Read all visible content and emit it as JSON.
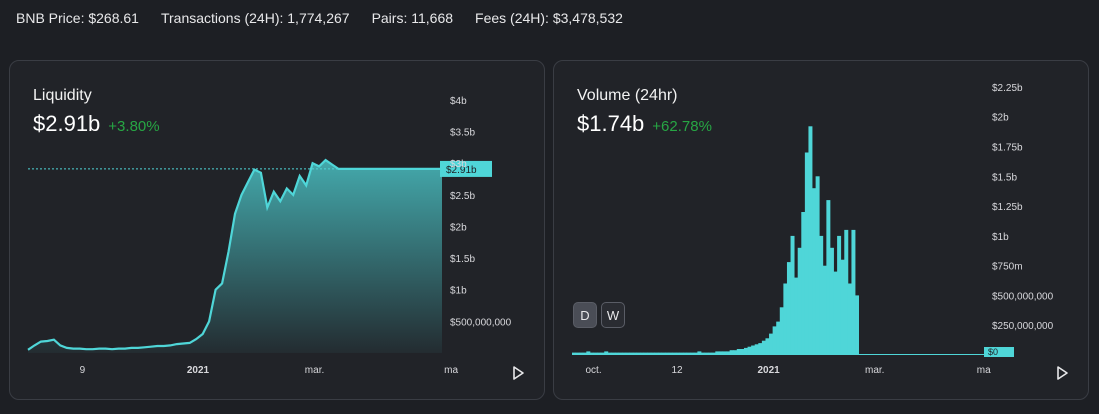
{
  "stats": {
    "bnb_price": "BNB Price: $268.61",
    "transactions": "Transactions (24H): 1,774,267",
    "pairs": "Pairs: 11,668",
    "fees": "Fees (24H): $3,478,532"
  },
  "colors": {
    "accent": "#4fd6d8",
    "positive": "#27a644",
    "background": "#1d1f24",
    "card": "#212328"
  },
  "liquidity": {
    "title": "Liquidity",
    "value": "$2.91b",
    "change": "+3.80%",
    "current_label": "$2.91b",
    "play_icon": "play-icon",
    "chart_data": {
      "type": "area",
      "y_ticks": [
        "$4b",
        "$3.5b",
        "$3b",
        "$2.5b",
        "$2b",
        "$1.5b",
        "$1b",
        "$500,000,000"
      ],
      "y_tick_values": [
        4,
        3.5,
        3,
        2.5,
        2,
        1.5,
        1,
        0.5
      ],
      "x_ticks": [
        "9",
        "2021",
        "mar.",
        "ma"
      ],
      "x_tick_positions": [
        0.13,
        0.33,
        0.55,
        0.81
      ],
      "ylim": [
        0,
        4.3
      ],
      "values": [
        0.05,
        0.12,
        0.18,
        0.19,
        0.21,
        0.12,
        0.08,
        0.07,
        0.07,
        0.06,
        0.06,
        0.07,
        0.07,
        0.06,
        0.07,
        0.07,
        0.08,
        0.08,
        0.09,
        0.1,
        0.11,
        0.11,
        0.12,
        0.14,
        0.15,
        0.16,
        0.22,
        0.3,
        0.5,
        1.0,
        1.1,
        1.6,
        2.2,
        2.5,
        2.7,
        2.9,
        2.85,
        2.3,
        2.55,
        2.4,
        2.6,
        2.5,
        2.8,
        2.65,
        3.0,
        2.95,
        3.05,
        2.98,
        2.91,
        2.91,
        2.91,
        2.91,
        2.91,
        2.91,
        2.91,
        2.91,
        2.91,
        2.91,
        2.91,
        2.91,
        2.91,
        2.91,
        2.91,
        2.91,
        2.91
      ],
      "current": 2.91
    }
  },
  "volume": {
    "title": "Volume (24hr)",
    "value": "$1.74b",
    "change": "+62.78%",
    "current_label": "$0",
    "toggle": {
      "day": "D",
      "week": "W"
    },
    "play_icon": "play-icon",
    "chart_data": {
      "type": "bar",
      "y_ticks": [
        "$2.25b",
        "$2b",
        "$1.75b",
        "$1.5b",
        "$1.25b",
        "$1b",
        "$750m",
        "$500,000,000",
        "$250,000,000"
      ],
      "y_tick_values": [
        2.25,
        2,
        1.75,
        1.5,
        1.25,
        1,
        0.75,
        0.5,
        0.25
      ],
      "x_ticks": [
        "oct.",
        "12",
        "2021",
        "mar.",
        "ma"
      ],
      "x_tick_positions": [
        0.05,
        0.25,
        0.45,
        0.7,
        0.96
      ],
      "ylim": [
        0,
        2.3
      ],
      "values": [
        0.02,
        0.02,
        0.02,
        0.02,
        0.03,
        0.02,
        0.02,
        0.02,
        0.02,
        0.03,
        0.02,
        0.02,
        0.02,
        0.02,
        0.02,
        0.02,
        0.02,
        0.02,
        0.02,
        0.02,
        0.02,
        0.02,
        0.02,
        0.02,
        0.02,
        0.02,
        0.02,
        0.02,
        0.02,
        0.02,
        0.02,
        0.02,
        0.02,
        0.02,
        0.02,
        0.03,
        0.02,
        0.02,
        0.02,
        0.02,
        0.03,
        0.03,
        0.03,
        0.03,
        0.04,
        0.04,
        0.05,
        0.05,
        0.06,
        0.07,
        0.08,
        0.09,
        0.1,
        0.12,
        0.14,
        0.18,
        0.24,
        0.28,
        0.4,
        0.6,
        0.78,
        1.0,
        0.65,
        0.9,
        1.2,
        1.7,
        1.92,
        1.4,
        1.5,
        1.0,
        0.75,
        1.3,
        0.9,
        0.7,
        1.0,
        0.8,
        1.05,
        0.6,
        1.05,
        0.5,
        0,
        0,
        0,
        0,
        0,
        0,
        0,
        0,
        0,
        0,
        0,
        0,
        0,
        0,
        0,
        0,
        0,
        0,
        0,
        0,
        0,
        0,
        0,
        0,
        0,
        0,
        0,
        0,
        0,
        0,
        0,
        0,
        0,
        0,
        0
      ],
      "current": 0
    }
  }
}
